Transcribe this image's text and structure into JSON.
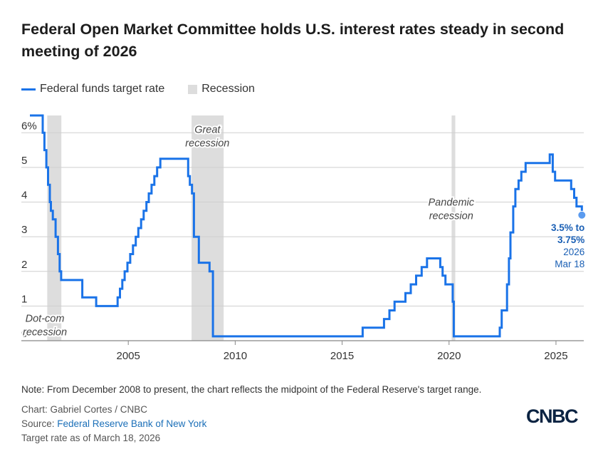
{
  "title": "Federal Open Market Committee holds U.S. interest rates steady in second meeting of 2026",
  "legend": {
    "series_label": "Federal funds target rate",
    "recession_label": "Recession"
  },
  "colors": {
    "series": "#1a73e8",
    "recession": "#dddddd",
    "grid": "#cfcfcf",
    "axis_text": "#333333",
    "annotation": "#1a5fb4"
  },
  "chart_data": {
    "type": "line",
    "title": "",
    "xlabel": "",
    "ylabel": "",
    "xlim": [
      2000.0,
      2026.3
    ],
    "ylim": [
      0,
      6.5
    ],
    "x_ticks": [
      2005,
      2010,
      2015,
      2020,
      2025
    ],
    "x_tick_labels": [
      "2005",
      "2010",
      "2015",
      "2020",
      "2025"
    ],
    "y_ticks": [
      0,
      1,
      2,
      3,
      4,
      5,
      6
    ],
    "y_tick_labels": [
      "0",
      "1",
      "2",
      "3",
      "4",
      "5",
      "6%"
    ],
    "grid": "horizontal",
    "legend_position": "top-left",
    "series": [
      {
        "name": "Federal funds target rate",
        "step": true,
        "x": [
          2000.4,
          2001.0,
          2001.08,
          2001.17,
          2001.25,
          2001.33,
          2001.38,
          2001.47,
          2001.6,
          2001.71,
          2001.79,
          2001.86,
          2001.95,
          2002.85,
          2003.5,
          2004.5,
          2004.61,
          2004.72,
          2004.83,
          2004.96,
          2005.09,
          2005.22,
          2005.35,
          2005.47,
          2005.6,
          2005.72,
          2005.85,
          2005.96,
          2006.09,
          2006.22,
          2006.35,
          2006.5,
          2007.7,
          2007.8,
          2007.88,
          2007.98,
          2008.07,
          2008.3,
          2008.8,
          2008.96,
          2015.96,
          2016.96,
          2017.21,
          2017.45,
          2017.96,
          2018.21,
          2018.46,
          2018.72,
          2018.97,
          2019.59,
          2019.7,
          2019.83,
          2020.17,
          2020.22,
          2022.21,
          2022.37,
          2022.46,
          2022.71,
          2022.8,
          2022.87,
          2023.0,
          2023.1,
          2023.25,
          2023.38,
          2023.58,
          2024.71,
          2024.85,
          2024.96,
          2025.71,
          2025.85,
          2025.96,
          2026.21
        ],
        "values": [
          6.5,
          6.0,
          5.5,
          5.0,
          4.5,
          4.0,
          3.75,
          3.5,
          3.0,
          2.5,
          2.0,
          1.75,
          1.75,
          1.25,
          1.0,
          1.25,
          1.5,
          1.75,
          2.0,
          2.25,
          2.5,
          2.75,
          3.0,
          3.25,
          3.5,
          3.75,
          4.0,
          4.25,
          4.5,
          4.75,
          5.0,
          5.25,
          5.25,
          4.75,
          4.5,
          4.25,
          3.0,
          2.25,
          2.0,
          0.125,
          0.375,
          0.625,
          0.875,
          1.125,
          1.375,
          1.625,
          1.875,
          2.125,
          2.375,
          2.125,
          1.875,
          1.625,
          1.125,
          0.125,
          0.125,
          0.375,
          0.875,
          1.625,
          2.375,
          3.125,
          3.875,
          4.375,
          4.625,
          4.875,
          5.125,
          5.375,
          4.875,
          4.625,
          4.375,
          4.125,
          3.875,
          3.625
        ]
      }
    ],
    "recessions": [
      {
        "start": 2001.21,
        "end": 2001.87,
        "label_lines": [
          "Dot-com",
          "recession"
        ],
        "label_at": [
          2001.1,
          0.55
        ],
        "anchor": "middle"
      },
      {
        "start": 2007.96,
        "end": 2009.46,
        "label_lines": [
          "Great",
          "recession"
        ],
        "label_at": [
          2008.7,
          6.0
        ],
        "anchor": "middle"
      },
      {
        "start": 2020.12,
        "end": 2020.29,
        "label_lines": [
          "Pandemic",
          "recession"
        ],
        "label_at": [
          2020.1,
          3.9
        ],
        "anchor": "middle"
      }
    ],
    "annotation": {
      "x": 2026.21,
      "y": 3.625,
      "lines": [
        "3.5% to",
        "3.75%",
        "2026",
        "Mar 18"
      ],
      "bold_lines": 2
    }
  },
  "footer": {
    "note": "Note: From December 2008 to present, the chart reflects the midpoint of the Federal Reserve's target range.",
    "chart_credit": "Chart: Gabriel Cortes / CNBC",
    "source_prefix": "Source: ",
    "source_link": "Federal Reserve Bank of New York",
    "as_of": "Target rate as of March 18, 2026"
  },
  "logo_text": "CNBC"
}
